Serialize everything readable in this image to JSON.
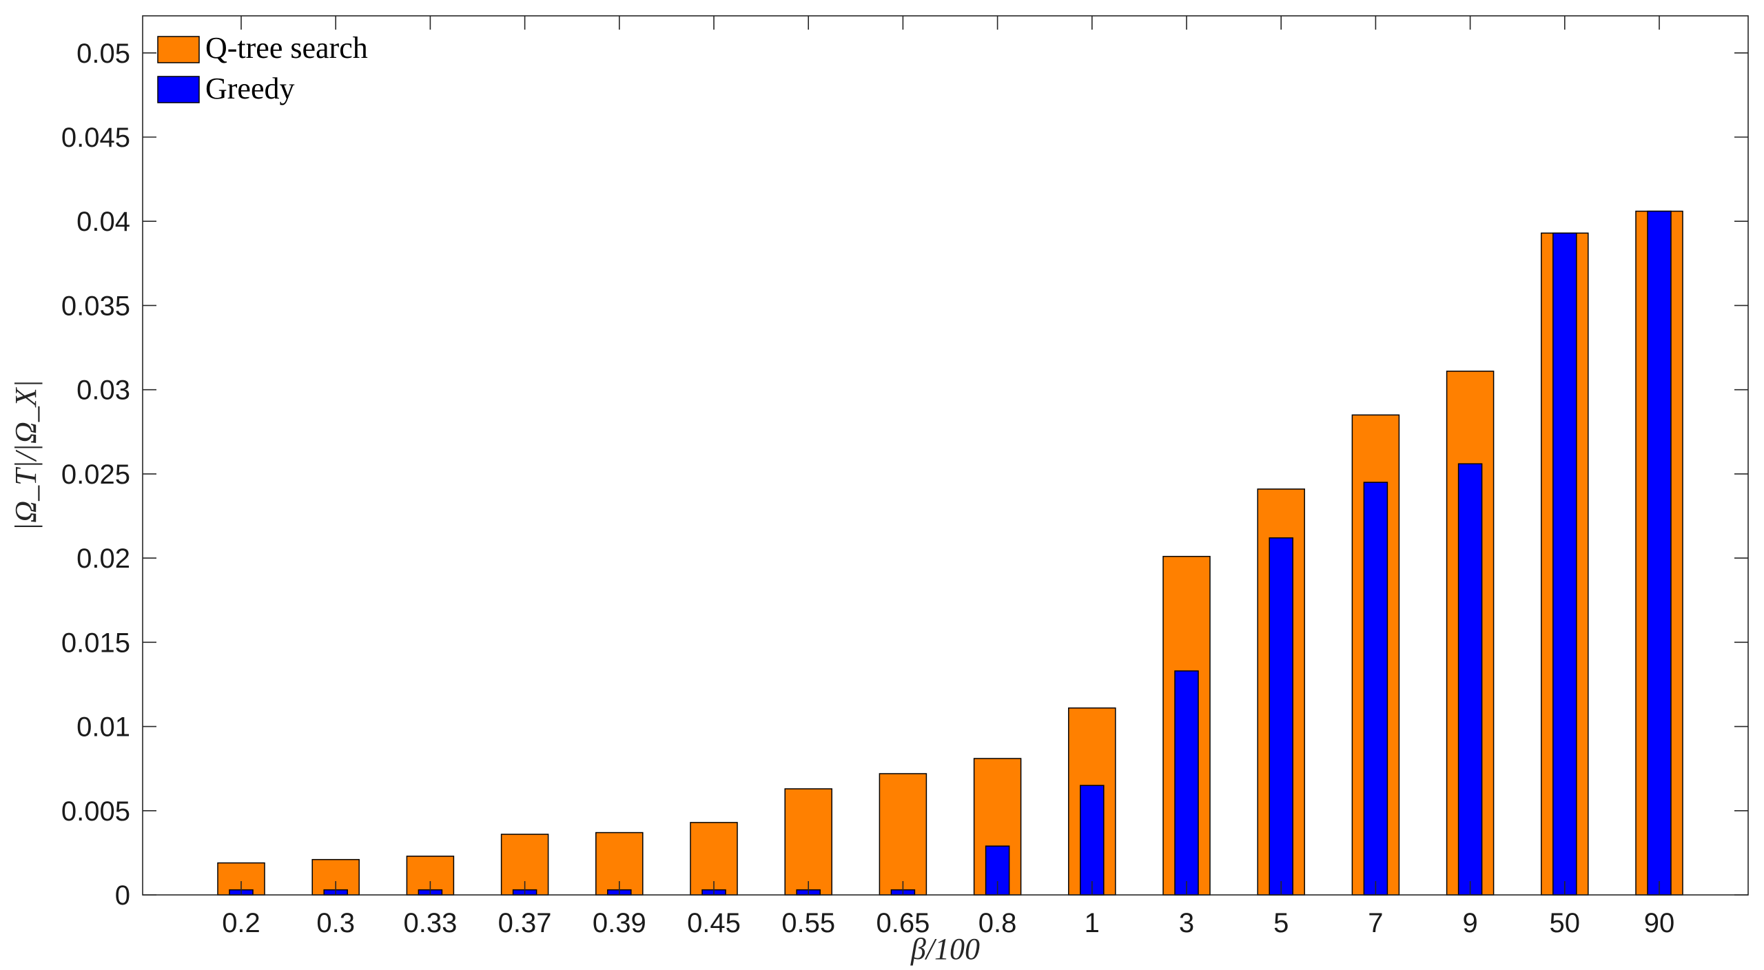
{
  "chart_data": {
    "type": "bar",
    "title": "",
    "xlabel": "β/100",
    "ylabel": "|Ω_T|/|Ω_X|",
    "categories": [
      "0.2",
      "0.3",
      "0.33",
      "0.37",
      "0.39",
      "0.45",
      "0.55",
      "0.65",
      "0.8",
      "1",
      "3",
      "5",
      "7",
      "9",
      "50",
      "90"
    ],
    "ylim": [
      0,
      0.0522
    ],
    "yticks": [
      "0",
      "0.005",
      "0.01",
      "0.015",
      "0.02",
      "0.025",
      "0.03",
      "0.035",
      "0.04",
      "0.045",
      "0.05"
    ],
    "grid": false,
    "legend_position": "top-left",
    "overlaid": true,
    "series": [
      {
        "name": "Q-tree search",
        "color": "#ff8000",
        "values": [
          0.0019,
          0.0021,
          0.0023,
          0.0036,
          0.0037,
          0.0043,
          0.0063,
          0.0072,
          0.0081,
          0.0111,
          0.0201,
          0.0241,
          0.0285,
          0.0311,
          0.0393,
          0.0406
        ]
      },
      {
        "name": "Greedy",
        "color": "#0000ff",
        "values": [
          0.0003,
          0.0003,
          0.0003,
          0.0003,
          0.0003,
          0.0003,
          0.0003,
          0.0003,
          0.0029,
          0.0065,
          0.0133,
          0.0212,
          0.0245,
          0.0256,
          0.0393,
          0.0406
        ]
      }
    ]
  }
}
